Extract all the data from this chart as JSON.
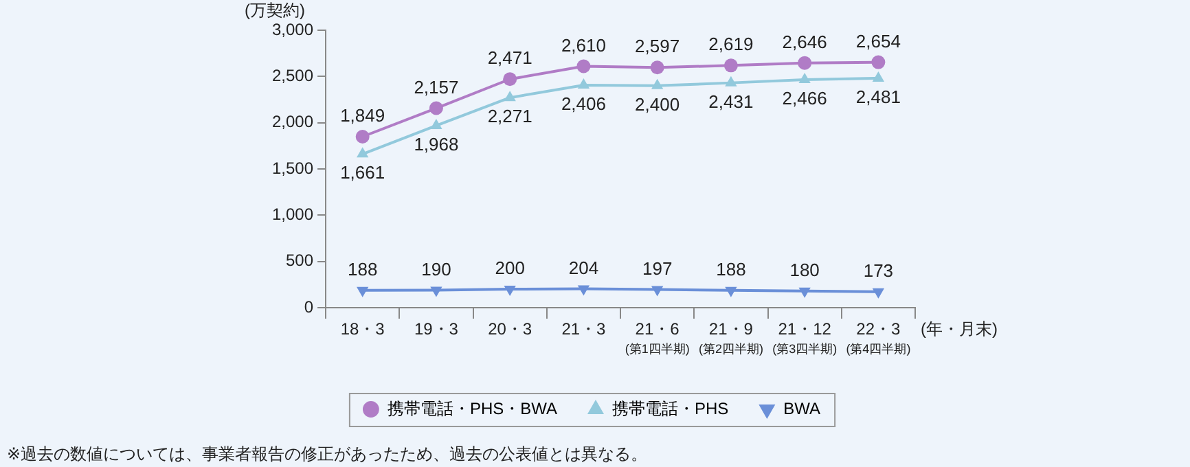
{
  "chart_data": {
    "type": "line",
    "ylabel": "(万契約)",
    "categories": [
      "18・3",
      "19・3",
      "20・3",
      "21・3",
      "21・6\n(第1四半期)",
      "21・9\n(第2四半期)",
      "21・12\n(第3四半期)",
      "22・3\n(第4四半期)"
    ],
    "series": [
      {
        "name": "携帯電話・PHS・BWA",
        "color": "#b07cc6",
        "marker": "circle",
        "values": [
          1849,
          2157,
          2471,
          2610,
          2597,
          2619,
          2646,
          2654
        ],
        "value_labels": [
          "1,849",
          "2,157",
          "2,471",
          "2,610",
          "2,597",
          "2,619",
          "2,646",
          "2,654"
        ]
      },
      {
        "name": "携帯電話・PHS",
        "color": "#92c9dc",
        "marker": "triangle",
        "values": [
          1661,
          1968,
          2271,
          2406,
          2400,
          2431,
          2466,
          2481
        ],
        "value_labels": [
          "1,661",
          "1,968",
          "2,271",
          "2,406",
          "2,400",
          "2,431",
          "2,466",
          "2,481"
        ]
      },
      {
        "name": "BWA",
        "color": "#6a8fd8",
        "marker": "triangle-down",
        "values": [
          188,
          190,
          200,
          204,
          197,
          188,
          180,
          173
        ],
        "value_labels": [
          "188",
          "190",
          "200",
          "204",
          "197",
          "188",
          "180",
          "173"
        ]
      }
    ],
    "ylim": [
      0,
      3000
    ],
    "yticks": [
      0,
      500,
      {
        "value": 1000,
        "label": "1,000"
      },
      {
        "value": 1500,
        "label": "1,500"
      },
      {
        "value": 2000,
        "label": "2,000"
      },
      {
        "value": 2500,
        "label": "2,500"
      },
      {
        "value": 3000,
        "label": "3,000"
      }
    ],
    "grid": false,
    "legend": "bottom",
    "annotations": [
      "(年・月末)",
      "※過去の数値については、事業者報告の修正があったため、過去の公表値とは異なる。"
    ]
  }
}
